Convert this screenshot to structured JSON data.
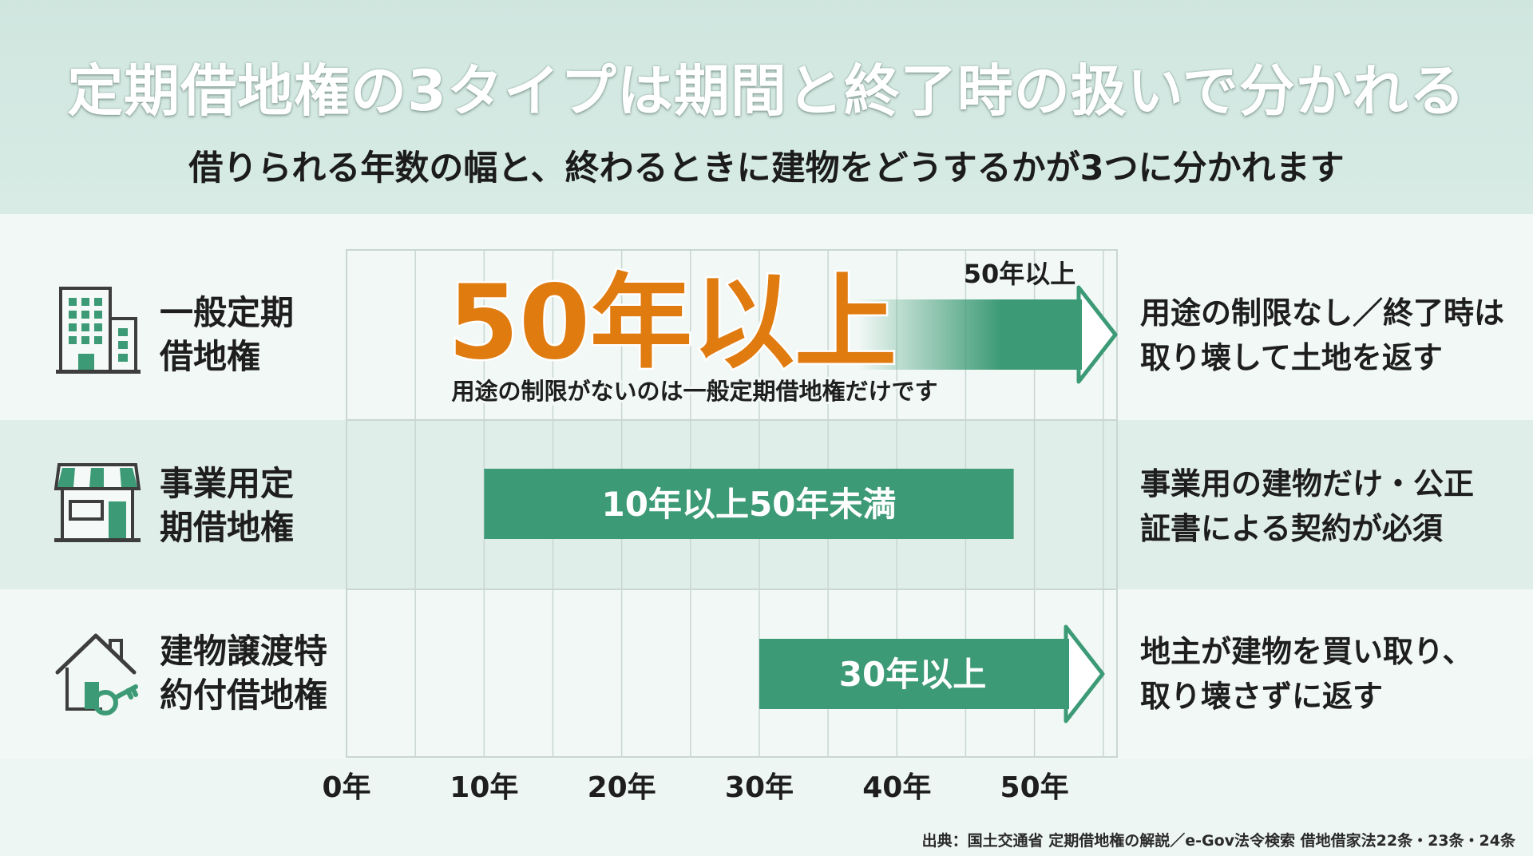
{
  "title": "定期借地権の3タイプは期間と終了時の扱いで分かれる",
  "subtitle": "借りられる年数の幅と、終わるときに建物をどうするかが3つに分かれます",
  "rows": [
    {
      "icon": "office-building-icon",
      "label_lines": [
        "一般定期",
        "借地権"
      ],
      "desc_lines": [
        "用途の制限なし／終了時は",
        "取り壊して土地を返す"
      ]
    },
    {
      "icon": "storefront-icon",
      "label_lines": [
        "事業用定",
        "期借地権"
      ],
      "desc_lines": [
        "事業用の建物だけ・公正",
        "証書による契約が必須"
      ]
    },
    {
      "icon": "house-key-icon",
      "label_lines": [
        "建物譲渡特",
        "約付借地権"
      ],
      "desc_lines": [
        "地主が建物を買い取り、",
        "取り壊さずに返す"
      ]
    }
  ],
  "highlight": {
    "big_text": "50年以上",
    "note": "用途の制限がないのは一般定期借地権だけです"
  },
  "chart_data": {
    "type": "bar",
    "orientation": "horizontal",
    "x_unit": "年",
    "x_ticks": [
      "0年",
      "10年",
      "20年",
      "30年",
      "40年",
      "50年"
    ],
    "xlim": [
      0,
      56
    ],
    "categories": [
      "一般定期借地権",
      "事業用定期借地権",
      "建物譲渡特約付借地権"
    ],
    "bars": [
      {
        "category": "一般定期借地権",
        "start": 50,
        "end": null,
        "open_ended": true,
        "label": "50年以上"
      },
      {
        "category": "事業用定期借地権",
        "start": 10,
        "end": 50,
        "open_ended": false,
        "label": "10年以上50年未満"
      },
      {
        "category": "建物譲渡特約付借地権",
        "start": 30,
        "end": null,
        "open_ended": true,
        "label": "30年以上"
      }
    ],
    "grid": true,
    "colors": {
      "bar": "#3c9a76",
      "highlight_text": "#e07b10",
      "grid": "#c9d6d1"
    }
  },
  "source": "出典：国土交通省 定期借地権の解説／e-Gov法令検索 借地借家法22条・23条・24条"
}
